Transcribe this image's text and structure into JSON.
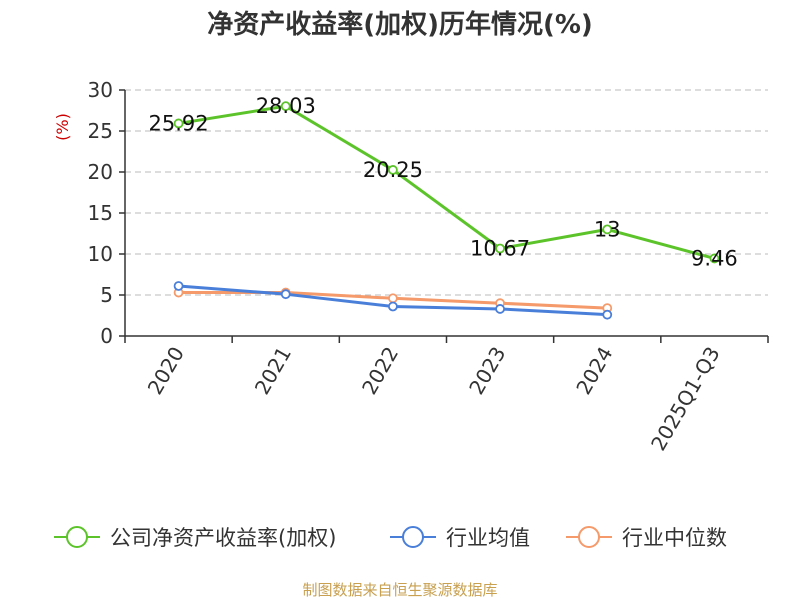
{
  "chart_data": {
    "type": "line",
    "title": "净资产收益率(加权)历年情况(%)",
    "ylabel": "(%)",
    "categories": [
      "2020",
      "2021",
      "2022",
      "2023",
      "2024",
      "2025Q1-Q3"
    ],
    "yticks": [
      "0",
      "5",
      "10",
      "15",
      "20",
      "25",
      "30"
    ],
    "ylim": [
      0,
      30
    ],
    "grid": true,
    "legend_position": "bottom",
    "series": [
      {
        "name": "公司净资产收益率(加权)",
        "color": "#5cc42a",
        "values": [
          25.92,
          28.03,
          20.25,
          10.67,
          13,
          9.46
        ],
        "labels": [
          "25.92",
          "28.03",
          "20.25",
          "10.67",
          "13",
          "9.46"
        ]
      },
      {
        "name": "行业均值",
        "color": "#4a7fd9",
        "values": [
          6.1,
          5.1,
          3.6,
          3.3,
          2.6,
          null
        ]
      },
      {
        "name": "行业中位数",
        "color": "#f59a6a",
        "values": [
          5.3,
          5.3,
          4.6,
          4.0,
          3.4,
          null
        ]
      }
    ]
  },
  "source": "制图数据来自恒生聚源数据库"
}
